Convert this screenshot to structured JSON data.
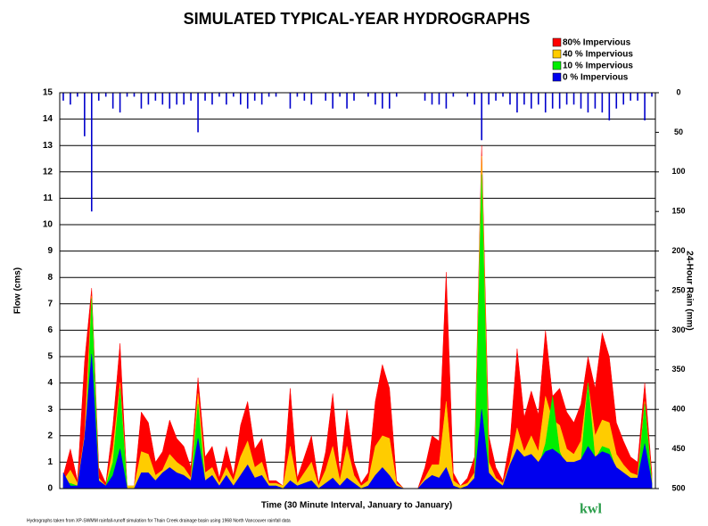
{
  "chart_data": {
    "type": "area",
    "title": "SIMULATED TYPICAL-YEAR HYDROGRAPHS",
    "xlabel": "Time (30 Minute Interval, January to January)",
    "ylabel": "Flow (cms)",
    "y2label": "24-Hour Rain  (mm)",
    "footnote": "Hydrographs taken from XP-SWMM rainfall-runoff simulation for Thain Creek drainage basin using  1968 North Vancouver rainfall data",
    "logo": "kwl",
    "ylim": [
      0,
      15
    ],
    "yticks": [
      0,
      1,
      2,
      3,
      4,
      5,
      6,
      7,
      8,
      9,
      10,
      11,
      12,
      13,
      14,
      15
    ],
    "y2lim": [
      500,
      0
    ],
    "y2ticks": [
      0,
      50,
      100,
      150,
      200,
      250,
      300,
      350,
      400,
      450,
      500
    ],
    "grid": true,
    "legend": "top-right",
    "series": [
      {
        "name": "80% Impervious",
        "color": "#ff0000",
        "values": [
          0.5,
          1.5,
          0.3,
          4.8,
          7.6,
          0.8,
          0.2,
          2.4,
          5.5,
          0.1,
          0.1,
          2.9,
          2.5,
          1.0,
          1.4,
          2.6,
          1.9,
          1.6,
          0.8,
          4.2,
          1.2,
          1.6,
          0.4,
          1.6,
          0.5,
          2.4,
          3.3,
          1.5,
          1.9,
          0.3,
          0.3,
          0.1,
          3.8,
          0.4,
          1.2,
          2.0,
          0.2,
          1.4,
          3.6,
          0.6,
          3.0,
          1.0,
          0.2,
          0.6,
          3.3,
          4.7,
          3.8,
          0.3,
          0,
          0,
          0,
          0.8,
          2.0,
          1.8,
          8.2,
          0.6,
          0.1,
          0.4,
          1.2,
          13.0,
          2.0,
          0.8,
          0.3,
          1.8,
          5.3,
          2.7,
          3.7,
          2.8,
          6.0,
          3.5,
          3.8,
          2.9,
          2.5,
          3.2,
          5.0,
          3.8,
          5.9,
          5.0,
          2.5,
          1.8,
          1.2,
          1.0,
          4.0,
          0.6
        ]
      },
      {
        "name": "40 % Impervious",
        "color": "#ffcc00",
        "values": [
          0.3,
          0.7,
          0.2,
          2.0,
          7.3,
          0.4,
          0.1,
          1.5,
          4.0,
          0.1,
          0.1,
          1.4,
          1.3,
          0.5,
          0.7,
          1.3,
          1.0,
          0.8,
          0.4,
          3.6,
          0.6,
          0.8,
          0.2,
          0.8,
          0.3,
          1.2,
          1.8,
          0.8,
          1.0,
          0.2,
          0.2,
          0.1,
          1.6,
          0.2,
          0.6,
          1.0,
          0.1,
          0.7,
          1.6,
          0.3,
          1.6,
          0.5,
          0.1,
          0.3,
          1.6,
          2.0,
          1.9,
          0.2,
          0,
          0,
          0,
          0.4,
          0.9,
          0.9,
          3.3,
          0.3,
          0.1,
          0.2,
          0.6,
          12.6,
          1.0,
          0.4,
          0.2,
          1.0,
          2.3,
          1.4,
          2.0,
          1.4,
          3.5,
          2.6,
          2.4,
          1.5,
          1.3,
          1.8,
          4.0,
          2.0,
          2.6,
          2.5,
          1.3,
          0.9,
          0.6,
          0.5,
          3.3,
          0.3
        ]
      },
      {
        "name": "10 % Impervious",
        "color": "#00ee00",
        "values": [
          0.2,
          0.2,
          0.1,
          0.8,
          7.2,
          0.2,
          0.1,
          1.0,
          3.8,
          0,
          0,
          0.4,
          0.6,
          0.2,
          0.3,
          0.5,
          0.4,
          0.3,
          0.2,
          3.2,
          0.2,
          0.3,
          0.1,
          0.3,
          0.1,
          0.4,
          0.6,
          0.3,
          0.3,
          0.1,
          0.1,
          0,
          0.3,
          0.1,
          0.2,
          0.3,
          0,
          0.2,
          0.3,
          0.1,
          0.3,
          0.2,
          0,
          0.1,
          0.4,
          0.5,
          0.4,
          0.1,
          0,
          0,
          0,
          0.2,
          0.3,
          0.3,
          0.3,
          0.1,
          0,
          0.1,
          0.2,
          11.9,
          0.4,
          0.2,
          0.1,
          0.6,
          1.5,
          0.8,
          1.2,
          0.8,
          1.7,
          3.5,
          1.4,
          0.8,
          0.8,
          1.0,
          4.0,
          1.1,
          1.6,
          1.5,
          0.7,
          0.5,
          0.3,
          0.3,
          3.2,
          0.2
        ]
      },
      {
        "name": "0 % Impervious",
        "color": "#0000ee",
        "values": [
          0.6,
          0.1,
          0.1,
          1.9,
          5.1,
          0.3,
          0.1,
          0.5,
          1.5,
          0,
          0,
          0.6,
          0.6,
          0.3,
          0.6,
          0.8,
          0.6,
          0.5,
          0.3,
          1.9,
          0.3,
          0.5,
          0.1,
          0.5,
          0.1,
          0.5,
          0.9,
          0.4,
          0.5,
          0.1,
          0.1,
          0,
          0.3,
          0.1,
          0.2,
          0.3,
          0,
          0.2,
          0.4,
          0.1,
          0.4,
          0.2,
          0,
          0.1,
          0.5,
          0.8,
          0.5,
          0.1,
          0,
          0,
          0,
          0.3,
          0.5,
          0.4,
          0.8,
          0.1,
          0,
          0.1,
          0.4,
          3.0,
          0.6,
          0.3,
          0.1,
          0.9,
          1.5,
          1.2,
          1.3,
          1.0,
          1.4,
          1.5,
          1.3,
          1.0,
          1.0,
          1.1,
          1.6,
          1.2,
          1.4,
          1.3,
          0.8,
          0.6,
          0.4,
          0.4,
          1.7,
          0.2
        ]
      },
      {
        "axis": "y2",
        "color": "#0000cc",
        "values": [
          10,
          15,
          5,
          55,
          150,
          10,
          5,
          20,
          25,
          5,
          5,
          20,
          15,
          10,
          15,
          20,
          15,
          15,
          10,
          50,
          10,
          15,
          5,
          15,
          5,
          15,
          20,
          10,
          15,
          5,
          5,
          0,
          20,
          5,
          10,
          15,
          0,
          10,
          20,
          5,
          20,
          10,
          0,
          5,
          15,
          20,
          20,
          5,
          0,
          0,
          0,
          10,
          15,
          15,
          20,
          5,
          0,
          5,
          15,
          60,
          15,
          10,
          5,
          15,
          25,
          15,
          20,
          15,
          25,
          20,
          20,
          15,
          15,
          20,
          25,
          20,
          25,
          35,
          20,
          15,
          10,
          10,
          35,
          5
        ]
      }
    ]
  }
}
